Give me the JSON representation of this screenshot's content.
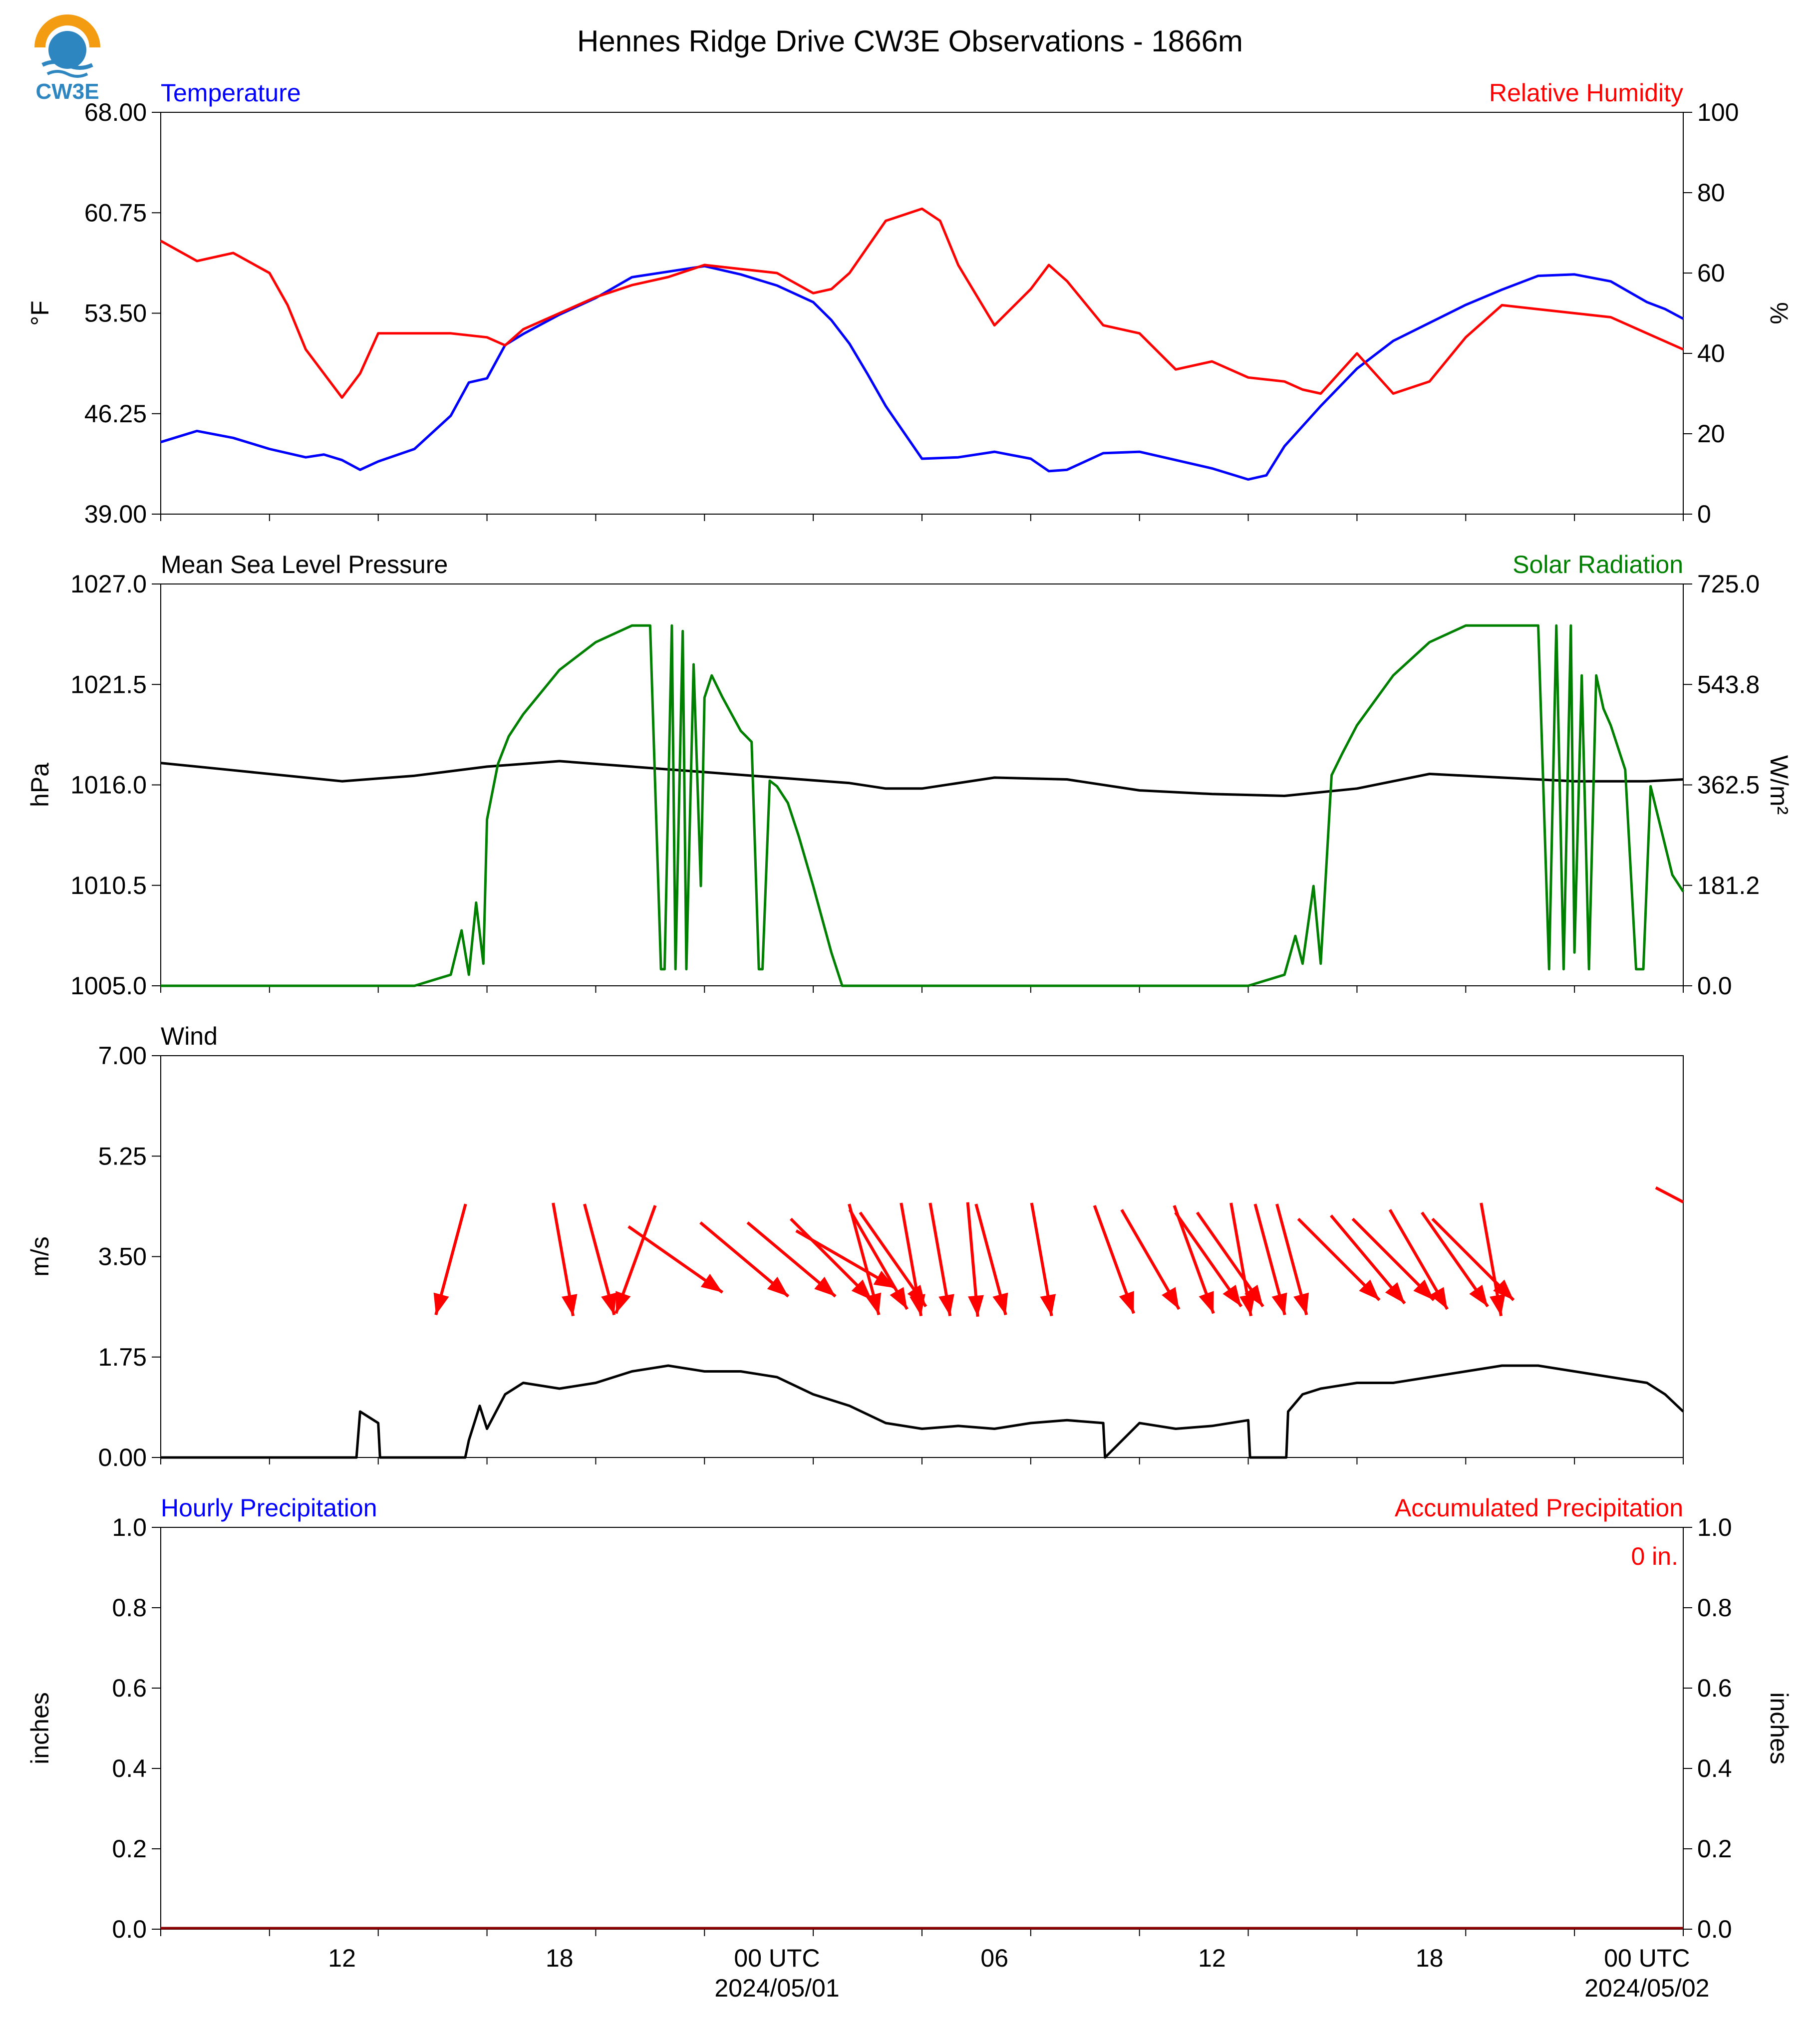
{
  "title": "Hennes Ridge Drive CW3E Observations - 1866m",
  "logo": {
    "text": "CW3E",
    "icon": "cw3e-water-drop-logo",
    "colors": [
      "#f39c12",
      "#2e86c1"
    ]
  },
  "x_axis": {
    "tick_labels": [
      "12",
      "18",
      "00 UTC",
      "06",
      "12",
      "18",
      "00 UTC"
    ],
    "tick_hours": [
      12,
      18,
      24,
      30,
      36,
      42,
      48
    ],
    "date_labels": [
      "2024/05/01",
      "2024/05/02"
    ],
    "date_label_hours": [
      24,
      48
    ],
    "range_hours": [
      7,
      49
    ]
  },
  "chart_data": [
    {
      "type": "line",
      "title_left": "Temperature",
      "title_right": "Relative Humidity",
      "ylabel_left": "°F",
      "ylabel_right": "%",
      "ylim_left": [
        39,
        68
      ],
      "ylim_right": [
        0,
        100
      ],
      "yticks_left": [
        "68.00",
        "60.75",
        "53.50",
        "46.25",
        "39.00"
      ],
      "yticks_right": [
        "100",
        "80",
        "60",
        "40",
        "20",
        "0"
      ],
      "series": [
        {
          "name": "Temperature",
          "color": "#0000ff",
          "axis": "left",
          "x": [
            7,
            8,
            9,
            10,
            11,
            11.5,
            12,
            12.5,
            13,
            14,
            15,
            15.5,
            16,
            16.5,
            17,
            18,
            19,
            20,
            21,
            22,
            23,
            24,
            25,
            25.5,
            26,
            26.5,
            27,
            28,
            29,
            30,
            31,
            31.5,
            32,
            33,
            34,
            35,
            36,
            37,
            37.5,
            38,
            39,
            40,
            41,
            42,
            43,
            44,
            45,
            46,
            47,
            48,
            48.5,
            49
          ],
          "y": [
            44.2,
            45.0,
            44.5,
            43.7,
            43.1,
            43.3,
            42.9,
            42.2,
            42.8,
            43.7,
            46.1,
            48.5,
            48.8,
            51.2,
            52.0,
            53.4,
            54.6,
            56.1,
            56.5,
            56.9,
            56.3,
            55.5,
            54.3,
            53.0,
            51.3,
            49.1,
            46.8,
            43.0,
            43.1,
            43.5,
            43.0,
            42.1,
            42.2,
            43.4,
            43.5,
            42.9,
            42.3,
            41.5,
            41.8,
            43.9,
            46.8,
            49.5,
            51.5,
            52.8,
            54.1,
            55.2,
            56.2,
            56.3,
            55.8,
            54.3,
            53.8,
            53.1
          ]
        },
        {
          "name": "Relative Humidity",
          "color": "#ff0000",
          "axis": "right",
          "x": [
            7,
            8,
            9,
            10,
            10.5,
            11,
            11.5,
            12,
            12.5,
            13,
            14,
            15,
            16,
            16.5,
            17,
            18,
            19,
            20,
            21,
            22,
            23,
            24,
            25,
            25.5,
            26,
            27,
            28,
            28.5,
            29,
            30,
            31,
            31.5,
            32,
            33,
            34,
            35,
            36,
            37,
            38,
            38.5,
            39,
            40,
            41,
            42,
            43,
            44,
            45,
            46,
            47,
            48,
            49
          ],
          "y": [
            68,
            63,
            65,
            60,
            52,
            41,
            35,
            29,
            35,
            45,
            45,
            45,
            44,
            42,
            46,
            50,
            54,
            57,
            59,
            62,
            61,
            60,
            55,
            56,
            60,
            73,
            76,
            73,
            62,
            47,
            56,
            62,
            58,
            47,
            45,
            36,
            38,
            34,
            33,
            31,
            30,
            40,
            30,
            33,
            44,
            52,
            51,
            50,
            49,
            45,
            41
          ]
        }
      ]
    },
    {
      "type": "line",
      "title_left": "Mean Sea Level Pressure",
      "title_right": "Solar Radiation",
      "ylabel_left": "hPa",
      "ylabel_right": "W/m²",
      "ylim_left": [
        1005,
        1027
      ],
      "ylim_right": [
        0,
        725
      ],
      "yticks_left": [
        "1027.0",
        "1021.5",
        "1016.0",
        "1010.5",
        "1005.0"
      ],
      "yticks_right": [
        "725.0",
        "543.8",
        "362.5",
        "181.2",
        "0.0"
      ],
      "series": [
        {
          "name": "Mean Sea Level Pressure",
          "color": "#000000",
          "axis": "left",
          "x": [
            7,
            9,
            11,
            12,
            14,
            16,
            18,
            20,
            22,
            24,
            26,
            27,
            28,
            30,
            32,
            34,
            36,
            38,
            40,
            42,
            44,
            46,
            48,
            49
          ],
          "y": [
            1017.2,
            1016.8,
            1016.4,
            1016.2,
            1016.5,
            1017.0,
            1017.3,
            1017.0,
            1016.7,
            1016.4,
            1016.1,
            1015.8,
            1015.8,
            1016.4,
            1016.3,
            1015.7,
            1015.5,
            1015.4,
            1015.8,
            1016.6,
            1016.4,
            1016.2,
            1016.2,
            1016.3
          ]
        },
        {
          "name": "Solar Radiation",
          "color": "#008000",
          "axis": "right",
          "x": [
            7,
            14,
            15,
            15.3,
            15.5,
            15.7,
            15.9,
            16.0,
            16.3,
            16.6,
            17,
            18,
            19,
            20,
            20.5,
            20.8,
            20.9,
            21.1,
            21.2,
            21.4,
            21.5,
            21.7,
            21.9,
            22.0,
            22.2,
            22.5,
            23,
            23.3,
            23.5,
            23.6,
            23.8,
            24.0,
            24.3,
            24.6,
            25,
            25.5,
            25.8,
            26,
            27,
            36,
            37,
            38,
            38.3,
            38.5,
            38.8,
            39.0,
            39.3,
            39.6,
            40,
            41,
            42,
            43,
            44,
            45,
            45.3,
            45.5,
            45.7,
            45.9,
            46,
            46.2,
            46.4,
            46.6,
            46.8,
            47,
            47.4,
            47.7,
            47.9,
            48.1,
            48.4,
            48.7,
            49
          ],
          "y": [
            0,
            0,
            20,
            100,
            20,
            150,
            40,
            300,
            400,
            450,
            490,
            570,
            620,
            650,
            650,
            30,
            30,
            650,
            30,
            640,
            30,
            580,
            180,
            520,
            560,
            520,
            460,
            440,
            30,
            30,
            370,
            360,
            330,
            270,
            180,
            60,
            0,
            0,
            0,
            0,
            0,
            20,
            90,
            40,
            180,
            40,
            380,
            420,
            470,
            560,
            620,
            650,
            650,
            650,
            30,
            650,
            30,
            650,
            60,
            560,
            30,
            560,
            500,
            470,
            390,
            30,
            30,
            360,
            280,
            200,
            170
          ]
        }
      ]
    },
    {
      "type": "line",
      "title_left": "Wind",
      "ylabel_left": "m/s",
      "ylim_left": [
        0,
        7
      ],
      "yticks_left": [
        "7.00",
        "5.25",
        "3.50",
        "1.75",
        "0.00"
      ],
      "series": [
        {
          "name": "Wind",
          "color": "#000000",
          "axis": "left",
          "x": [
            7,
            12.4,
            12.5,
            13,
            13.05,
            15.4,
            15.5,
            15.8,
            16,
            16.5,
            17,
            18,
            19,
            20,
            21,
            22,
            23,
            24,
            25,
            26,
            27,
            28,
            29,
            30,
            31,
            32,
            33,
            33.05,
            34,
            35,
            36,
            37,
            37.05,
            38.05,
            38.1,
            38.5,
            39,
            40,
            41,
            42,
            43,
            44,
            45,
            46,
            47,
            48,
            48.5,
            49
          ],
          "y": [
            0,
            0,
            0.8,
            0.6,
            0,
            0,
            0.3,
            0.9,
            0.5,
            1.1,
            1.3,
            1.2,
            1.3,
            1.5,
            1.6,
            1.5,
            1.5,
            1.4,
            1.1,
            0.9,
            0.6,
            0.5,
            0.55,
            0.5,
            0.6,
            0.65,
            0.6,
            0,
            0.6,
            0.5,
            0.55,
            0.65,
            0,
            0,
            0.8,
            1.1,
            1.2,
            1.3,
            1.3,
            1.4,
            1.5,
            1.6,
            1.6,
            1.5,
            1.4,
            1.3,
            1.1,
            0.8
          ]
        }
      ],
      "wind_arrows": {
        "color": "#ff0000",
        "hours": [
          15.0,
          18.1,
          19.1,
          20.1,
          21.2,
          23.1,
          24.4,
          25.5,
          25.9,
          26.4,
          26.8,
          27.2,
          27.7,
          28.5,
          29.4,
          29.9,
          31.3,
          33.3,
          34.3,
          35.5,
          35.9,
          36.5,
          36.8,
          37.6,
          38.2,
          39.5,
          40.3,
          41.0,
          41.7,
          42.7,
          43.2,
          43.7
        ],
        "direction_deg": [
          15,
          350,
          345,
          20,
          305,
          310,
          310,
          315,
          300,
          345,
          330,
          325,
          350,
          350,
          355,
          345,
          350,
          340,
          330,
          340,
          325,
          325,
          350,
          345,
          345,
          315,
          320,
          315,
          330,
          325,
          315,
          350
        ],
        "speed_ms": [
          3.2,
          3.0,
          3.1,
          3.2,
          3.0,
          3.0,
          2.9,
          2.8,
          3.0,
          3.0,
          3.2,
          3.1,
          3.1,
          3.0,
          3.1,
          3.1,
          3.0,
          3.1,
          3.0,
          3.1,
          3.0,
          3.0,
          3.1,
          3.1,
          3.0,
          3.1,
          3.0,
          2.9,
          3.0,
          3.0,
          2.9,
          3.0
        ]
      }
    },
    {
      "type": "bar",
      "title_left": "Hourly Precipitation",
      "title_right": "Accumulated Precipitation",
      "ylabel_left": "inches",
      "ylabel_right": "inches",
      "ylim_left": [
        0,
        1
      ],
      "ylim_right": [
        0,
        1
      ],
      "yticks_left": [
        "1.0",
        "0.8",
        "0.6",
        "0.4",
        "0.2",
        "0.0"
      ],
      "yticks_right": [
        "1.0",
        "0.8",
        "0.6",
        "0.4",
        "0.2",
        "0.0"
      ],
      "accumulated_label": "0 in.",
      "series": [
        {
          "name": "Hourly Precipitation",
          "color": "#0000ff",
          "values": [
            0
          ]
        },
        {
          "name": "Accumulated Precipitation",
          "color": "#8b0000",
          "values": [
            0
          ]
        }
      ]
    }
  ]
}
